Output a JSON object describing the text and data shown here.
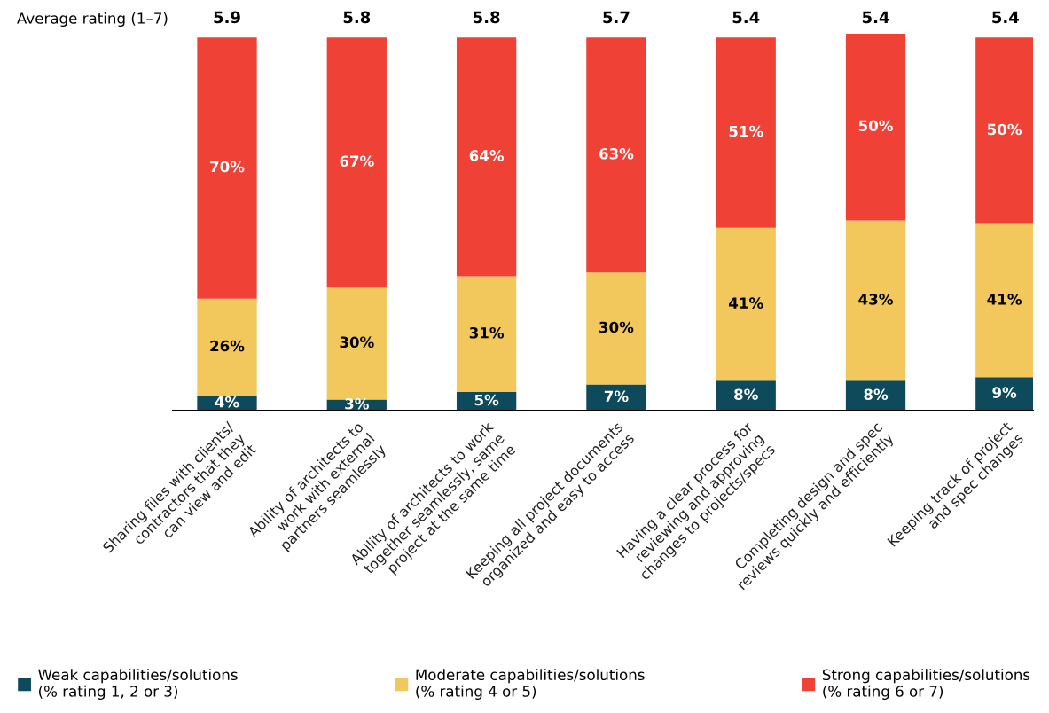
{
  "chart_data": {
    "type": "bar",
    "stacked": true,
    "legend": "bottom",
    "grid": false,
    "categories": [
      "Sharing files with clients/\ncontractors that they\ncan view and edit",
      "Ability of architects to\nwork with external\npartners seamlessly",
      "Ability of architects to work\ntogether seamlessly, same\nproject at the same time",
      "Keeping all project documents\norganized and easy to access",
      "Having a clear process for\nreviewing and approving\nchanges to projects/specs",
      "Completing design and spec\nreviews quickly and efficiently",
      "Keeping track of project\nand spec changes"
    ],
    "series": [
      {
        "name": "Weak capabilities/solutions\n(% rating 1, 2 or 3)",
        "color": "#0d4a5c",
        "values": [
          4,
          3,
          5,
          7,
          8,
          8,
          9
        ],
        "value_labels": [
          "4%",
          "3%",
          "5%",
          "7%",
          "8%",
          "8%",
          "9%"
        ]
      },
      {
        "name": "Moderate capabilities/solutions\n(% rating 4 or 5)",
        "color": "#f2c75c",
        "values": [
          26,
          30,
          31,
          30,
          41,
          43,
          41
        ],
        "value_labels": [
          "26%",
          "30%",
          "31%",
          "30%",
          "41%",
          "43%",
          "41%"
        ]
      },
      {
        "name": "Strong capabilities/solutions\n(% rating 6 or 7)",
        "color": "#ef4136",
        "values": [
          70,
          67,
          64,
          63,
          51,
          50,
          50
        ],
        "value_labels": [
          "70%",
          "67%",
          "64%",
          "63%",
          "51%",
          "50%",
          "50%"
        ]
      }
    ],
    "annotations": [
      "Average rating (1–7)",
      "5.9",
      "5.8",
      "5.8",
      "5.7",
      "5.4",
      "5.4",
      "5.4"
    ]
  }
}
